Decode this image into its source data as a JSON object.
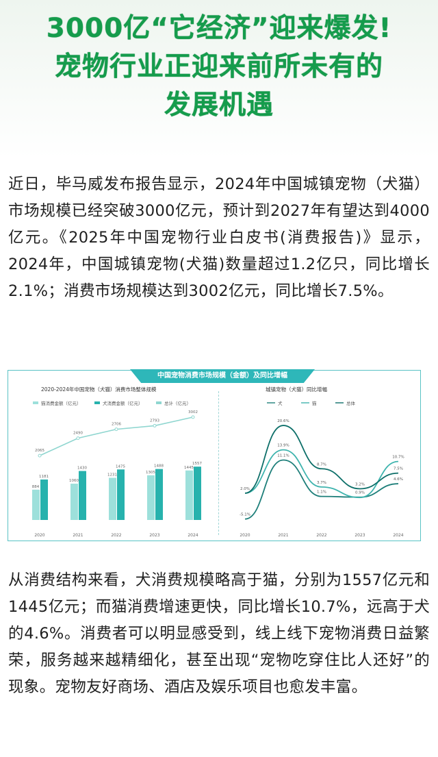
{
  "headline": {
    "line1": "3000亿“它经济”迎来爆发!",
    "line2": "宠物行业正迎来前所未有的",
    "line3": "发展机遇"
  },
  "paragraph1": "近日，毕马威发布报告显示，2024年中国城镇宠物（犬猫）市场规模已经突破3000亿元，预计到2027年有望达到4000亿元。《2025年中国宠物行业白皮书(消费报告)》显示，2024年，中国城镇宠物(犬猫)数量超过1.2亿只，同比增长2.1%；消费市场规模达到3002亿元，同比增长7.5%。",
  "paragraph2": "从消费结构来看，犬消费规模略高于猫，分别为1557亿元和1445亿元；而猫消费增速更快，同比增长10.7%，远高于犬的4.6%。消费者可以明显感受到，线上线下宠物消费日益繁荣，服务越来越精细化，甚至出现“宠物吃穿住比人还好”的现象。宠物友好商场、酒店及娱乐项目也愈发丰富。",
  "infographic": {
    "banner": "中国宠物消费市场规模（金额）及同比增幅",
    "accent": "#2eb7b9"
  },
  "chart_data": [
    {
      "type": "bar",
      "title": "2020-2024年中国宠物（犬猫）消费市场整体规模",
      "legend": [
        "猫消费金额（亿元）",
        "犬消费金额（亿元）",
        "总计（亿元）"
      ],
      "categories": [
        "2020",
        "2021",
        "2022",
        "2023",
        "2024"
      ],
      "series": [
        {
          "name": "猫消费金额（亿元）",
          "values": [
            884,
            1060,
            1231,
            1305,
            1445
          ]
        },
        {
          "name": "犬消费金额（亿元）",
          "values": [
            1181,
            1430,
            1475,
            1488,
            1557
          ]
        },
        {
          "name": "总计（亿元）",
          "values": [
            2065,
            2490,
            2706,
            2793,
            3002
          ],
          "as": "line"
        }
      ],
      "series_labels": [
        [
          "884",
          "1060",
          "1231",
          "1305",
          "1445"
        ],
        [
          "1181",
          "1430",
          "1475",
          "1488",
          "1557"
        ],
        [
          "2065",
          "2490",
          "2706",
          "2793",
          "3002"
        ]
      ]
    },
    {
      "type": "line",
      "title": "城镇宠物（犬猫）同比增幅",
      "legend": [
        "犬",
        "猫",
        "总体"
      ],
      "categories": [
        "2020",
        "2021",
        "2022",
        "2023",
        "2024"
      ],
      "series": [
        {
          "name": "犬",
          "values": [
            -5.1,
            11.1,
            1.1,
            0.9,
            4.6
          ]
        },
        {
          "name": "猫",
          "values": [
            2.0,
            13.9,
            3.7,
            0.8,
            10.7
          ]
        },
        {
          "name": "总体",
          "values": [
            2.0,
            20.6,
            8.7,
            3.2,
            7.5
          ]
        }
      ],
      "series_labels": [
        [
          "-5.1%",
          "11.1%",
          "1.1%",
          "0.9%",
          "4.6%"
        ],
        [
          "",
          "13.9%",
          "3.7%",
          "",
          "10.7%"
        ],
        [
          "2.0%",
          "20.6%",
          "8.7%",
          "3.2%",
          "7.5%"
        ]
      ],
      "ylim": [
        -8,
        24
      ]
    }
  ],
  "colors": {
    "headline": "#159c4c",
    "bar_light": "#9de0db",
    "bar_dark": "#27b2ad",
    "total_line": "#8fd6d0"
  }
}
